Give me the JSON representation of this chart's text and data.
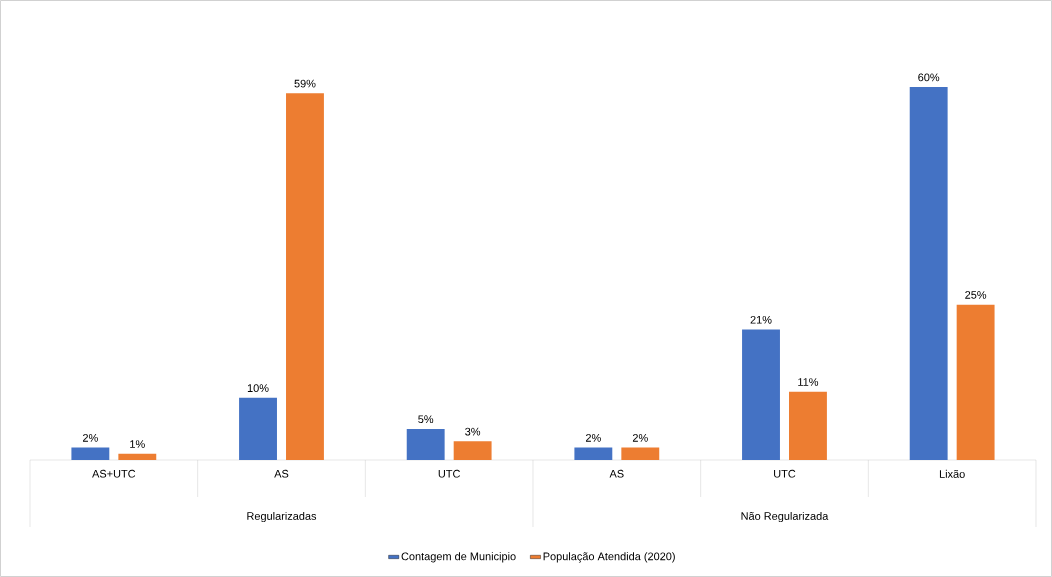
{
  "chart_data": {
    "type": "bar",
    "categories": [
      "AS+UTC",
      "AS",
      "UTC",
      "AS",
      "UTC",
      "Lixão"
    ],
    "series": [
      {
        "name": "Contagem de Municipio",
        "color": "#4472c4",
        "values": [
          2,
          10,
          5,
          2,
          21,
          60
        ],
        "value_labels": [
          "2%",
          "10%",
          "5%",
          "2%",
          "21%",
          "60%"
        ]
      },
      {
        "name": "População Atendida (2020)",
        "color": "#ed7d31",
        "values": [
          1,
          59,
          3,
          2,
          11,
          25
        ],
        "value_labels": [
          "1%",
          "59%",
          "3%",
          "2%",
          "11%",
          "25%"
        ]
      }
    ],
    "annotations": [
      "Regularizadas",
      "Não Regularizada"
    ],
    "legend": "bottom"
  }
}
